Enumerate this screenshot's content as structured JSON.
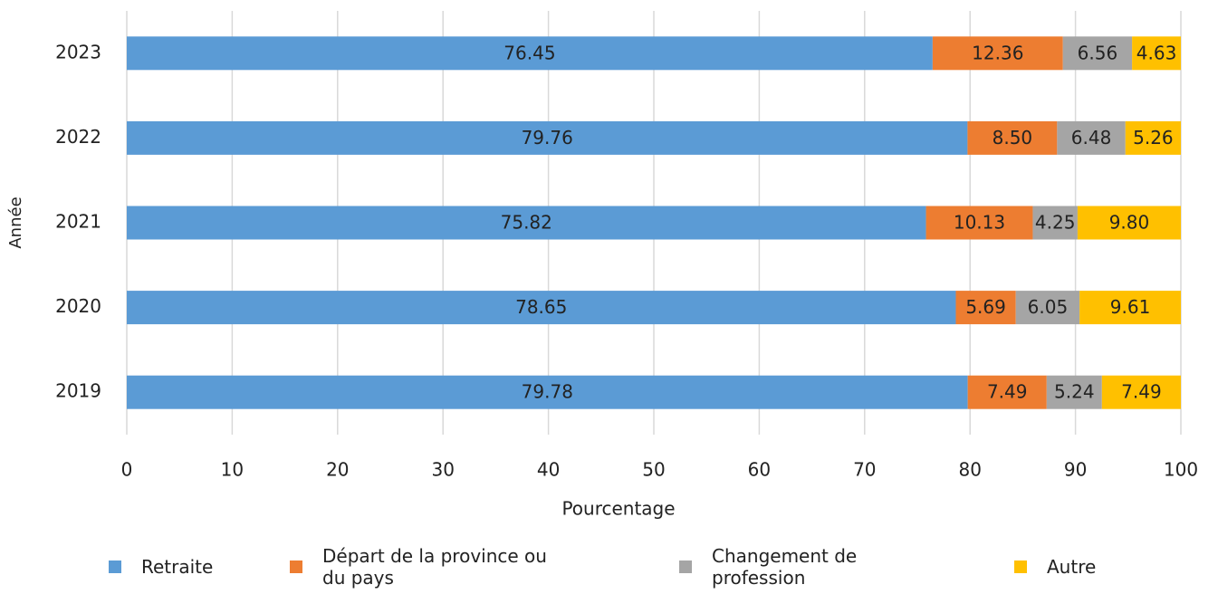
{
  "chart_data": {
    "type": "stacked-bar-horizontal",
    "x_label": "Pourcentage",
    "y_label": "Année",
    "categories": [
      "2023",
      "2022",
      "2021",
      "2020",
      "2019"
    ],
    "series": [
      {
        "name": "Retraite",
        "color": "#5b9bd5",
        "values": [
          76.45,
          79.76,
          75.82,
          78.65,
          79.78
        ],
        "value_labels": [
          "76.45",
          "79.76",
          "75.82",
          "78.65",
          "79.78"
        ]
      },
      {
        "name": "Départ de la province ou du pays",
        "color": "#ed7d31",
        "values": [
          12.36,
          8.5,
          10.13,
          5.69,
          7.49
        ],
        "value_labels": [
          "12.36",
          "8.50",
          "10.13",
          "5.69",
          "7.49"
        ]
      },
      {
        "name": "Changement de profession",
        "color": "#a5a5a5",
        "values": [
          6.56,
          6.48,
          4.25,
          6.05,
          5.24
        ],
        "value_labels": [
          "6.56",
          "6.48",
          "4.25",
          "6.05",
          "5.24"
        ]
      },
      {
        "name": "Autre",
        "color": "#ffc000",
        "values": [
          4.63,
          5.26,
          9.8,
          9.61,
          7.49
        ],
        "value_labels": [
          "4.63",
          "5.26",
          "9.80",
          "9.61",
          "7.49"
        ]
      }
    ],
    "xlim": [
      0,
      100
    ],
    "xticks": [
      0,
      10,
      20,
      30,
      40,
      50,
      60,
      70,
      80,
      90,
      100
    ],
    "grid": true
  }
}
